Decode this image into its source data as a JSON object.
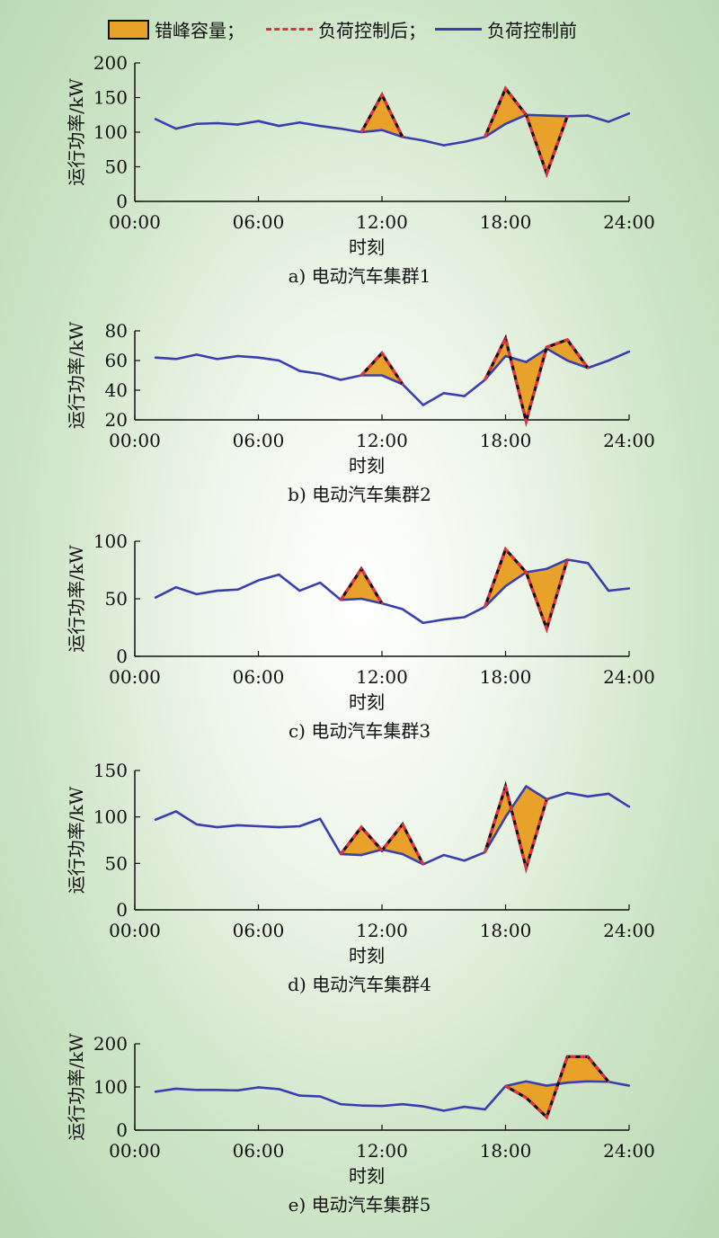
{
  "legend": {
    "area_label": "错峰容量；",
    "after_label": "负荷控制后；",
    "before_label": "负荷控制前"
  },
  "colors": {
    "area": "#e8a22a",
    "after": "#e23040",
    "before": "#3a3fb0"
  },
  "chart_data": [
    {
      "type": "line",
      "caption": "a) 电动汽车集群1",
      "xlabel": "时刻",
      "ylabel": "运行功率/kW",
      "xticks": [
        "00:00",
        "06:00",
        "12:00",
        "18:00",
        "24:00"
      ],
      "ylim": [
        0,
        200
      ],
      "yticks": [
        0,
        50,
        100,
        150,
        200
      ],
      "series": [
        {
          "name": "负荷控制前",
          "x": [
            1,
            2,
            3,
            4,
            5,
            6,
            7,
            8,
            9,
            10,
            11,
            12,
            13,
            14,
            15,
            16,
            17,
            18,
            19,
            20,
            21,
            22,
            23,
            24
          ],
          "values": [
            119,
            105,
            112,
            113,
            111,
            116,
            109,
            114,
            109,
            105,
            100,
            103,
            93,
            88,
            81,
            86,
            93,
            112,
            125,
            124,
            123,
            124,
            115,
            127
          ]
        },
        {
          "name": "负荷控制后",
          "x": [
            11,
            12,
            13,
            17,
            18,
            19,
            20,
            21
          ],
          "values": [
            100,
            154,
            93,
            93,
            163,
            125,
            40,
            123
          ]
        }
      ]
    },
    {
      "type": "line",
      "caption": "b) 电动汽车集群2",
      "xlabel": "时刻",
      "ylabel": "运行功率/kW",
      "xticks": [
        "00:00",
        "06:00",
        "12:00",
        "18:00",
        "24:00"
      ],
      "ylim": [
        20,
        80
      ],
      "yticks": [
        20,
        40,
        60,
        80
      ],
      "series": [
        {
          "name": "负荷控制前",
          "x": [
            1,
            2,
            3,
            4,
            5,
            6,
            7,
            8,
            9,
            10,
            11,
            12,
            13,
            14,
            15,
            16,
            17,
            18,
            19,
            20,
            21,
            22,
            23,
            24
          ],
          "values": [
            62,
            61,
            64,
            61,
            63,
            62,
            60,
            53,
            51,
            47,
            50,
            50,
            44,
            30,
            38,
            36,
            47,
            63,
            59,
            68,
            60,
            55,
            60,
            66
          ]
        },
        {
          "name": "负荷控制后",
          "x": [
            11,
            12,
            13,
            17,
            18,
            19,
            20,
            21,
            22
          ],
          "values": [
            50,
            65,
            44,
            47,
            75,
            19,
            69,
            74,
            55
          ]
        }
      ]
    },
    {
      "type": "line",
      "caption": "c) 电动汽车集群3",
      "xlabel": "时刻",
      "ylabel": "运行功率/kW",
      "xticks": [
        "00:00",
        "06:00",
        "12:00",
        "18:00",
        "24:00"
      ],
      "ylim": [
        0,
        100
      ],
      "yticks": [
        0,
        50,
        100
      ],
      "series": [
        {
          "name": "负荷控制前",
          "x": [
            1,
            2,
            3,
            4,
            5,
            6,
            7,
            8,
            9,
            10,
            11,
            12,
            13,
            14,
            15,
            16,
            17,
            18,
            19,
            20,
            21,
            22,
            23,
            24
          ],
          "values": [
            51,
            60,
            54,
            57,
            58,
            66,
            71,
            57,
            64,
            49,
            50,
            46,
            41,
            29,
            32,
            34,
            43,
            61,
            73,
            76,
            84,
            81,
            57,
            59
          ]
        },
        {
          "name": "负荷控制后",
          "x": [
            10,
            11,
            12,
            17,
            18,
            19,
            20,
            21
          ],
          "values": [
            49,
            76,
            46,
            43,
            93,
            73,
            24,
            84
          ]
        }
      ]
    },
    {
      "type": "line",
      "caption": "d) 电动汽车集群4",
      "xlabel": "时刻",
      "ylabel": "运行功率/kW",
      "xticks": [
        "00:00",
        "06:00",
        "12:00",
        "18:00",
        "24:00"
      ],
      "ylim": [
        0,
        150
      ],
      "yticks": [
        0,
        50,
        100,
        150
      ],
      "series": [
        {
          "name": "负荷控制前",
          "x": [
            1,
            2,
            3,
            4,
            5,
            6,
            7,
            8,
            9,
            10,
            11,
            12,
            13,
            14,
            15,
            16,
            17,
            18,
            19,
            20,
            21,
            22,
            23,
            24
          ],
          "values": [
            97,
            106,
            92,
            89,
            91,
            90,
            89,
            90,
            98,
            60,
            59,
            65,
            60,
            49,
            59,
            53,
            62,
            100,
            133,
            119,
            126,
            122,
            125,
            111
          ]
        },
        {
          "name": "负荷控制后",
          "x": [
            10,
            11,
            12,
            13,
            14,
            17,
            18,
            19,
            20
          ],
          "values": [
            60,
            89,
            64,
            92,
            49,
            62,
            133,
            45,
            119
          ]
        }
      ]
    },
    {
      "type": "line",
      "caption": "e) 电动汽车集群5",
      "xlabel": "时刻",
      "ylabel": "运行功率/kW",
      "xticks": [
        "00:00",
        "06:00",
        "12:00",
        "18:00",
        "24:00"
      ],
      "ylim": [
        0,
        200
      ],
      "yticks": [
        0,
        100,
        200
      ],
      "series": [
        {
          "name": "负荷控制前",
          "x": [
            1,
            2,
            3,
            4,
            5,
            6,
            7,
            8,
            9,
            10,
            11,
            12,
            13,
            14,
            15,
            16,
            17,
            18,
            19,
            20,
            21,
            22,
            23,
            24
          ],
          "values": [
            89,
            96,
            93,
            93,
            92,
            99,
            95,
            80,
            78,
            60,
            57,
            56,
            60,
            55,
            45,
            54,
            48,
            102,
            113,
            103,
            110,
            113,
            112,
            103
          ]
        },
        {
          "name": "负荷控制后",
          "x": [
            18,
            19,
            20,
            21,
            22,
            23
          ],
          "values": [
            102,
            75,
            30,
            170,
            170,
            112
          ]
        }
      ]
    }
  ]
}
